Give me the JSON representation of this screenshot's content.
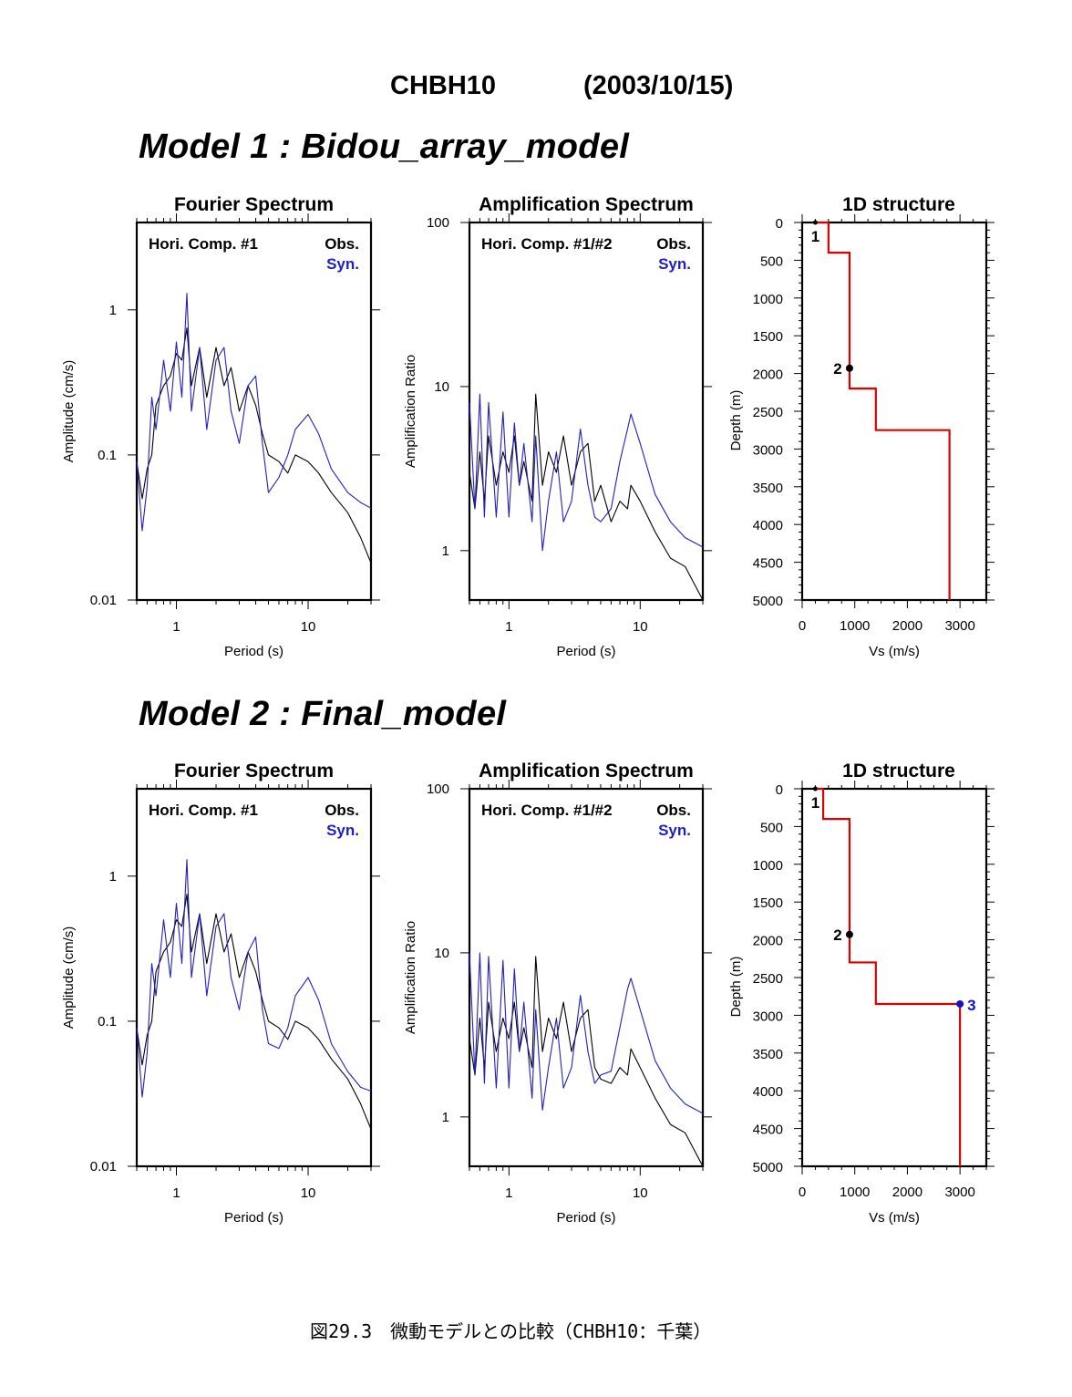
{
  "header": {
    "station": "CHBH10",
    "date": "(2003/10/15)"
  },
  "caption": "図29.3　微動モデルとの比較（CHBH10：千葉）",
  "colors": {
    "obs": "#000000",
    "syn": "#2020c0",
    "structure": "#dd0000",
    "point3": "#1010d0"
  },
  "labels": {
    "fourier_title": "Fourier Spectrum",
    "amp_title": "Amplification Spectrum",
    "struct_title": "1D structure",
    "fourier_comp": "Hori. Comp. #1",
    "amp_comp": "Hori. Comp. #1/#2",
    "obs": "Obs.",
    "syn": "Syn.",
    "fourier_ylabel": "Amplitude (cm/s)",
    "amp_ylabel": "Amplification Ratio",
    "period_xlabel": "Period (s)",
    "depth_ylabel": "Depth (m)",
    "vs_xlabel": "Vs (m/s)",
    "fourier_yticks": [
      "1",
      "0.1",
      "0.01"
    ],
    "amp_yticks": [
      "100",
      "10",
      "1"
    ],
    "period_xticks": [
      "1",
      "10"
    ],
    "depth_yticks": [
      "0",
      "500",
      "1000",
      "1500",
      "2000",
      "2500",
      "3000",
      "3500",
      "4000",
      "4500",
      "5000"
    ],
    "vs_xticks": [
      "0",
      "1000",
      "2000",
      "3000"
    ]
  },
  "models": [
    {
      "title": "Model 1 : Bidou_array_model"
    },
    {
      "title": "Model 2 : Final_model"
    }
  ],
  "chart_data": [
    {
      "type": "line",
      "model": 1,
      "title": "Fourier Spectrum",
      "xlabel": "Period (s)",
      "ylabel": "Amplitude (cm/s)",
      "xscale": "log",
      "yscale": "log",
      "xlim": [
        0.5,
        30
      ],
      "ylim": [
        0.01,
        4
      ],
      "series": [
        {
          "name": "Obs.",
          "x": [
            0.5,
            0.55,
            0.6,
            0.65,
            0.7,
            0.8,
            0.9,
            1.0,
            1.1,
            1.2,
            1.3,
            1.5,
            1.7,
            2.0,
            2.3,
            2.6,
            3.0,
            3.5,
            4.0,
            4.5,
            5.0,
            6.0,
            7.0,
            8.0,
            10,
            12,
            15,
            20,
            25,
            30
          ],
          "y": [
            0.09,
            0.05,
            0.08,
            0.1,
            0.22,
            0.3,
            0.35,
            0.5,
            0.45,
            0.75,
            0.3,
            0.55,
            0.25,
            0.55,
            0.3,
            0.4,
            0.2,
            0.3,
            0.22,
            0.14,
            0.1,
            0.09,
            0.075,
            0.1,
            0.09,
            0.075,
            0.055,
            0.04,
            0.027,
            0.018
          ]
        },
        {
          "name": "Syn.",
          "x": [
            0.5,
            0.55,
            0.6,
            0.65,
            0.7,
            0.8,
            0.9,
            1.0,
            1.1,
            1.2,
            1.3,
            1.5,
            1.7,
            2.0,
            2.3,
            2.6,
            3.0,
            3.5,
            4.0,
            4.5,
            5.0,
            6.0,
            7.0,
            8.0,
            10,
            12,
            15,
            20,
            25,
            30
          ],
          "y": [
            0.09,
            0.03,
            0.06,
            0.25,
            0.15,
            0.45,
            0.2,
            0.6,
            0.25,
            1.3,
            0.2,
            0.55,
            0.15,
            0.45,
            0.55,
            0.2,
            0.12,
            0.3,
            0.35,
            0.12,
            0.055,
            0.07,
            0.1,
            0.15,
            0.19,
            0.14,
            0.08,
            0.055,
            0.047,
            0.043
          ]
        }
      ]
    },
    {
      "type": "line",
      "model": 1,
      "title": "Amplification Spectrum",
      "xlabel": "Period (s)",
      "ylabel": "Amplification Ratio",
      "xscale": "log",
      "yscale": "log",
      "xlim": [
        0.5,
        30
      ],
      "ylim": [
        0.5,
        100
      ],
      "series": [
        {
          "name": "Obs.",
          "x": [
            0.5,
            0.55,
            0.6,
            0.65,
            0.7,
            0.8,
            0.9,
            1.0,
            1.1,
            1.2,
            1.3,
            1.5,
            1.6,
            1.8,
            2.0,
            2.3,
            2.6,
            3.0,
            3.5,
            4.0,
            4.5,
            5.0,
            6.0,
            7.0,
            8.0,
            8.5,
            10,
            13,
            17,
            22,
            30
          ],
          "y": [
            3,
            1.8,
            4,
            2,
            5,
            2.5,
            4,
            3,
            5,
            2.5,
            3.5,
            2,
            9,
            2.5,
            4,
            3,
            5,
            2.5,
            4,
            4.5,
            2,
            2.5,
            1.5,
            2,
            1.8,
            2.5,
            2,
            1.3,
            0.9,
            0.8,
            0.5
          ]
        },
        {
          "name": "Syn.",
          "x": [
            0.5,
            0.55,
            0.6,
            0.65,
            0.7,
            0.8,
            0.9,
            1.0,
            1.1,
            1.2,
            1.3,
            1.5,
            1.6,
            1.8,
            2.0,
            2.3,
            2.6,
            3.0,
            3.5,
            4.0,
            4.5,
            5.0,
            6.0,
            7.0,
            8.0,
            8.5,
            10,
            13,
            17,
            22,
            30
          ],
          "y": [
            8,
            1.8,
            9,
            1.6,
            8,
            1.6,
            7,
            1.6,
            6,
            2.5,
            4.5,
            1.5,
            5,
            1.0,
            2,
            4,
            1.5,
            2,
            5.5,
            2.5,
            1.6,
            1.5,
            1.8,
            3.5,
            5.5,
            6.8,
            4.5,
            2.2,
            1.5,
            1.2,
            1.05
          ]
        }
      ]
    },
    {
      "type": "line",
      "model": 1,
      "title": "1D structure",
      "xlabel": "Vs (m/s)",
      "ylabel": "Depth (m)",
      "xlim": [
        0,
        3500
      ],
      "ylim": [
        5000,
        0
      ],
      "layers": [
        {
          "label": "1",
          "vs": 500,
          "top": 0,
          "bottom": 400
        },
        {
          "label": "",
          "vs": 900,
          "top": 400,
          "bottom": 2200
        },
        {
          "label": "",
          "vs": 1400,
          "top": 2200,
          "bottom": 2750
        },
        {
          "label": "",
          "vs": 2800,
          "top": 2750,
          "bottom": 5000
        }
      ],
      "points": [
        {
          "label": "1",
          "vs": 250,
          "depth": 0,
          "color": "#000000"
        },
        {
          "label": "2",
          "vs": 900,
          "depth": 1930,
          "color": "#000000"
        }
      ]
    },
    {
      "type": "line",
      "model": 2,
      "title": "Fourier Spectrum",
      "xlabel": "Period (s)",
      "ylabel": "Amplitude (cm/s)",
      "xscale": "log",
      "yscale": "log",
      "xlim": [
        0.5,
        30
      ],
      "ylim": [
        0.01,
        4
      ],
      "series": [
        {
          "name": "Obs.",
          "x": [
            0.5,
            0.55,
            0.6,
            0.65,
            0.7,
            0.8,
            0.9,
            1.0,
            1.1,
            1.2,
            1.3,
            1.5,
            1.7,
            2.0,
            2.3,
            2.6,
            3.0,
            3.5,
            4.0,
            4.5,
            5.0,
            6.0,
            7.0,
            8.0,
            10,
            12,
            15,
            20,
            25,
            30
          ],
          "y": [
            0.09,
            0.05,
            0.08,
            0.1,
            0.22,
            0.3,
            0.35,
            0.5,
            0.45,
            0.75,
            0.3,
            0.55,
            0.25,
            0.55,
            0.3,
            0.4,
            0.2,
            0.3,
            0.22,
            0.14,
            0.1,
            0.09,
            0.075,
            0.1,
            0.09,
            0.075,
            0.055,
            0.04,
            0.027,
            0.018
          ]
        },
        {
          "name": "Syn.",
          "x": [
            0.5,
            0.55,
            0.6,
            0.65,
            0.7,
            0.8,
            0.9,
            1.0,
            1.1,
            1.2,
            1.3,
            1.5,
            1.7,
            2.0,
            2.3,
            2.6,
            3.0,
            3.5,
            4.0,
            4.5,
            5.0,
            6.0,
            7.0,
            8.0,
            10,
            12,
            15,
            20,
            25,
            30
          ],
          "y": [
            0.09,
            0.03,
            0.06,
            0.25,
            0.15,
            0.5,
            0.2,
            0.65,
            0.25,
            1.3,
            0.2,
            0.55,
            0.15,
            0.45,
            0.55,
            0.2,
            0.12,
            0.3,
            0.38,
            0.12,
            0.07,
            0.065,
            0.09,
            0.15,
            0.2,
            0.14,
            0.07,
            0.045,
            0.035,
            0.033
          ]
        }
      ]
    },
    {
      "type": "line",
      "model": 2,
      "title": "Amplification Spectrum",
      "xlabel": "Period (s)",
      "ylabel": "Amplification Ratio",
      "xscale": "log",
      "yscale": "log",
      "xlim": [
        0.5,
        30
      ],
      "ylim": [
        0.5,
        100
      ],
      "series": [
        {
          "name": "Obs.",
          "x": [
            0.5,
            0.55,
            0.6,
            0.65,
            0.7,
            0.8,
            0.9,
            1.0,
            1.1,
            1.2,
            1.3,
            1.5,
            1.6,
            1.8,
            2.0,
            2.3,
            2.6,
            3.0,
            3.5,
            4.0,
            4.5,
            5.0,
            6.0,
            7.0,
            8.0,
            8.5,
            10,
            13,
            17,
            22,
            30
          ],
          "y": [
            3,
            1.8,
            4,
            2,
            5,
            2.5,
            4,
            3,
            5,
            2.5,
            3.5,
            2,
            9.5,
            2.5,
            4,
            3,
            5,
            2.5,
            4,
            4.5,
            2,
            1.7,
            1.6,
            2,
            1.8,
            2.6,
            2,
            1.3,
            0.9,
            0.8,
            0.5
          ]
        },
        {
          "name": "Syn.",
          "x": [
            0.5,
            0.55,
            0.6,
            0.65,
            0.7,
            0.8,
            0.9,
            1.0,
            1.1,
            1.2,
            1.3,
            1.5,
            1.6,
            1.8,
            2.0,
            2.3,
            2.6,
            3.0,
            3.5,
            4.0,
            4.5,
            5.0,
            6.0,
            7.0,
            8.0,
            8.5,
            10,
            13,
            17,
            22,
            30
          ],
          "y": [
            10,
            1.8,
            10,
            1.6,
            9.5,
            1.5,
            9,
            1.5,
            8,
            2.5,
            5,
            1.3,
            4.5,
            1.1,
            2,
            4,
            1.5,
            2,
            5.5,
            2.5,
            1.6,
            1.8,
            1.9,
            3.5,
            6,
            7,
            4.5,
            2.2,
            1.5,
            1.2,
            1.05
          ]
        }
      ]
    },
    {
      "type": "line",
      "model": 2,
      "title": "1D structure",
      "xlabel": "Vs (m/s)",
      "ylabel": "Depth (m)",
      "xlim": [
        0,
        3500
      ],
      "ylim": [
        5000,
        0
      ],
      "layers": [
        {
          "label": "1",
          "vs": 400,
          "top": 0,
          "bottom": 400
        },
        {
          "label": "",
          "vs": 900,
          "top": 400,
          "bottom": 2300
        },
        {
          "label": "",
          "vs": 1400,
          "top": 2300,
          "bottom": 2850
        },
        {
          "label": "",
          "vs": 3000,
          "top": 2850,
          "bottom": 5000
        }
      ],
      "points": [
        {
          "label": "1",
          "vs": 250,
          "depth": 0,
          "color": "#000000"
        },
        {
          "label": "2",
          "vs": 900,
          "depth": 1930,
          "color": "#000000"
        },
        {
          "label": "3",
          "vs": 3000,
          "depth": 2850,
          "color": "#1010d0"
        }
      ]
    }
  ]
}
